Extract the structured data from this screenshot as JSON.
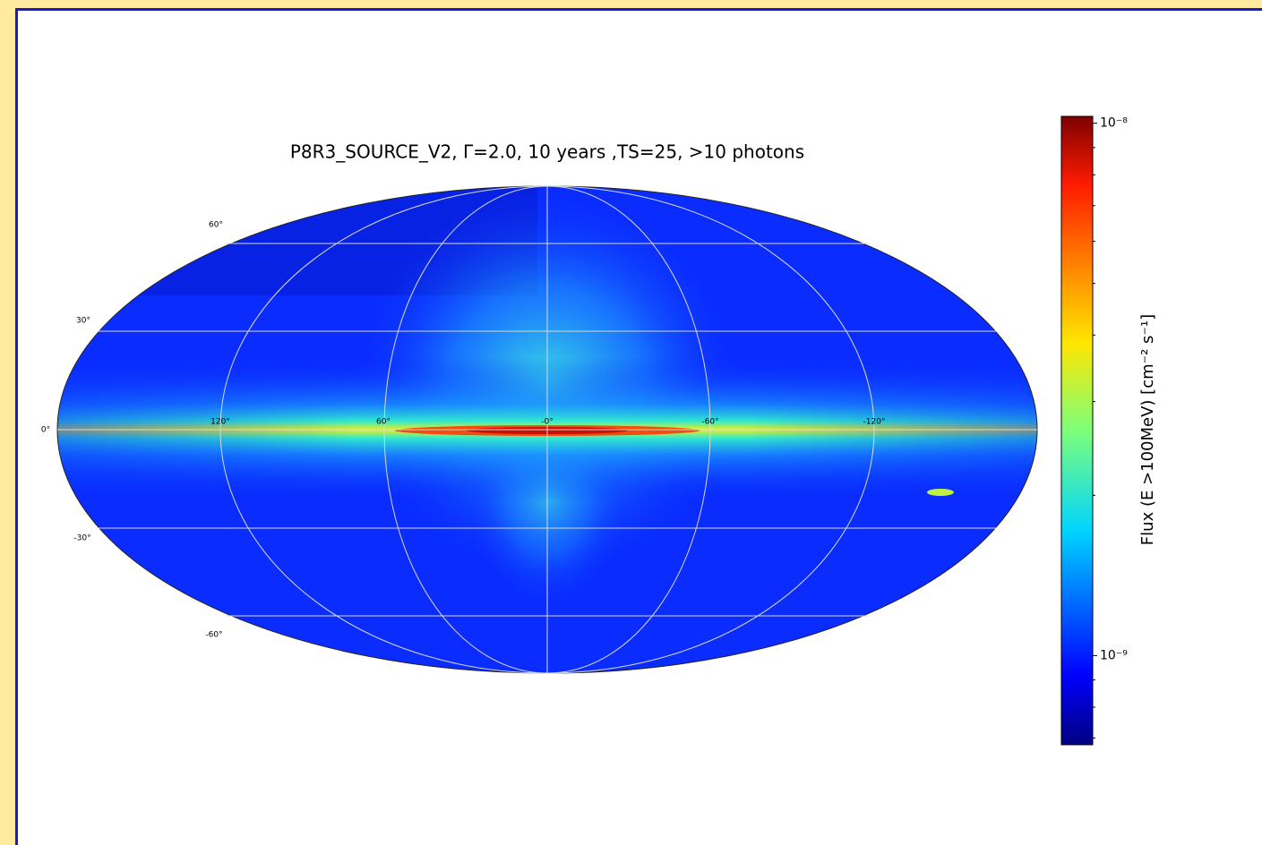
{
  "figure": {
    "title": "P8R3_SOURCE_V2, Γ=2.0, 10 years ,TS=25, >10 photons",
    "latitude_labels": [
      "60°",
      "30°",
      "0°",
      "-30°",
      "-60°"
    ],
    "longitude_labels": [
      "120°",
      "60°",
      "-0°",
      "-60°",
      "-120°"
    ],
    "colorbar": {
      "label": "Flux (E >100MeV) [cm⁻² s⁻¹]",
      "log": true,
      "lim": [
        6.8e-10,
        1.03e-08
      ],
      "ticks": [
        {
          "value": 1e-08,
          "label": "10⁻⁸"
        },
        {
          "value": 1e-09,
          "label": "10⁻⁹"
        }
      ],
      "minor_ticks": [
        9e-09,
        8e-09,
        7e-09,
        6e-09,
        5e-09,
        4e-09,
        3e-09,
        2e-09,
        9e-10,
        8e-10,
        7e-10
      ]
    }
  }
}
